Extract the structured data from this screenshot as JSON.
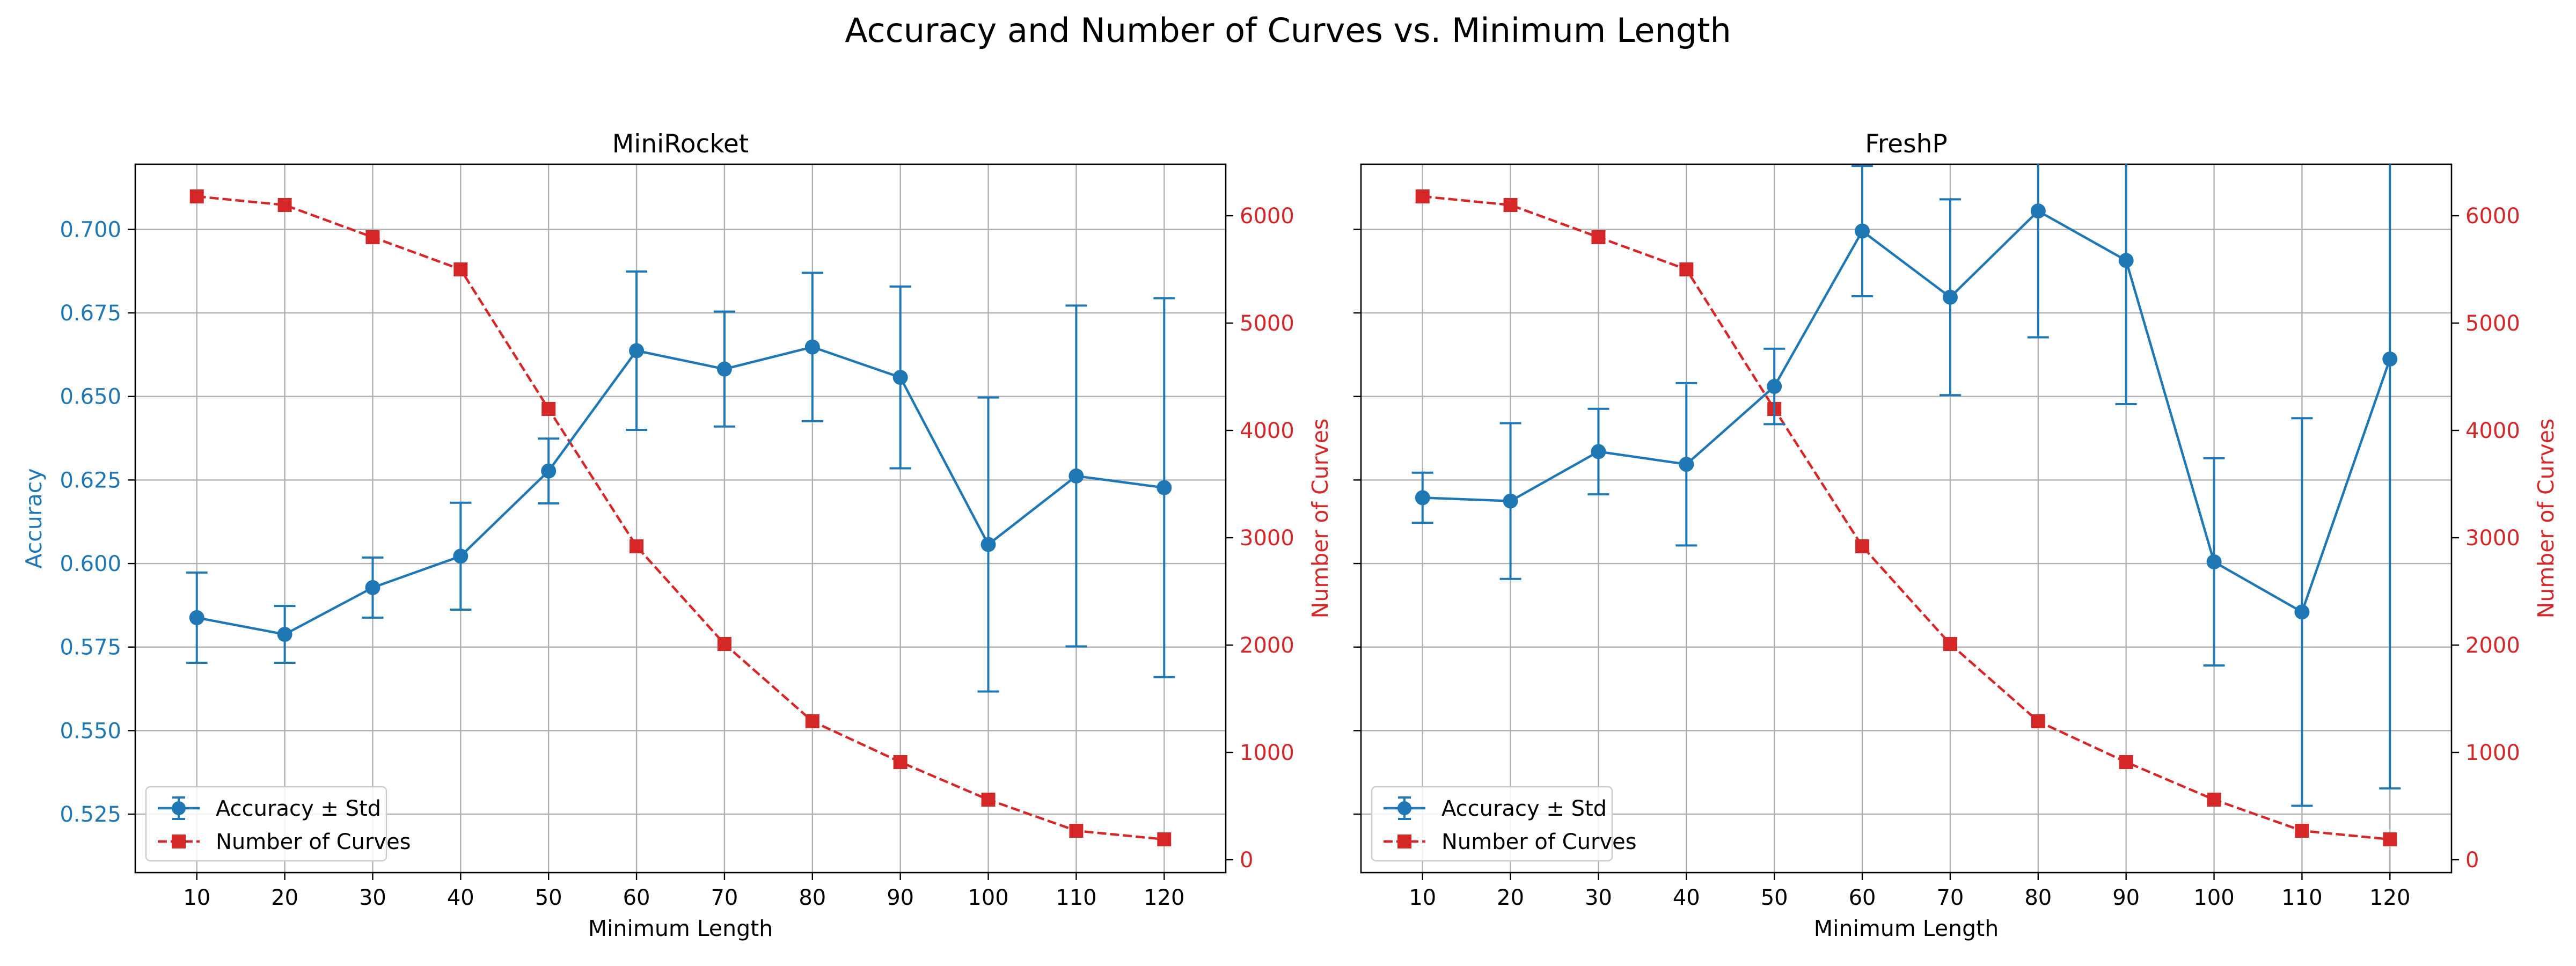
{
  "figure": {
    "suptitle": "Accuracy and Number of Curves vs. Minimum Length"
  },
  "colors": {
    "accuracy": "#1f77b4",
    "curves": "#d62728",
    "grid": "#b0b0b0",
    "axis": "#000000"
  },
  "chart_data": [
    {
      "type": "line",
      "title": "MiniRocket",
      "xlabel": "Minimum Length",
      "ylabel_left": "Accuracy",
      "ylabel_right": "Number of Curves",
      "x": [
        10,
        20,
        30,
        40,
        50,
        60,
        70,
        80,
        90,
        100,
        110,
        120
      ],
      "xticks": [
        "10",
        "20",
        "30",
        "40",
        "50",
        "60",
        "70",
        "80",
        "90",
        "100",
        "110",
        "120"
      ],
      "ylim_left": [
        0.5075,
        0.7195
      ],
      "yticks_left": [
        "0.525",
        "0.550",
        "0.575",
        "0.600",
        "0.625",
        "0.650",
        "0.675",
        "0.700"
      ],
      "ylim_right": [
        -120,
        6480
      ],
      "yticks_right": [
        "0",
        "1000",
        "2000",
        "3000",
        "4000",
        "5000",
        "6000"
      ],
      "grid": true,
      "legend_position": "lower-left",
      "series": [
        {
          "name": "Accuracy ± Std",
          "axis": "left",
          "style": "solid line, circle markers, error bars",
          "values": [
            0.5838,
            0.5788,
            0.5928,
            0.6022,
            0.6277,
            0.6637,
            0.6582,
            0.6648,
            0.6557,
            0.6057,
            0.6262,
            0.6227
          ],
          "std": [
            0.0135,
            0.0085,
            0.009,
            0.016,
            0.0097,
            0.0237,
            0.0172,
            0.0222,
            0.0272,
            0.044,
            0.051,
            0.0567
          ]
        },
        {
          "name": "Number of Curves",
          "axis": "right",
          "style": "dashed line, square markers",
          "values": [
            6180,
            6100,
            5800,
            5500,
            4200,
            2920,
            2010,
            1290,
            910,
            560,
            270,
            190
          ]
        }
      ]
    },
    {
      "type": "line",
      "title": "FreshP",
      "xlabel": "Minimum Length",
      "ylabel_left": "",
      "ylabel_right": "Number of Curves",
      "x": [
        10,
        20,
        30,
        40,
        50,
        60,
        70,
        80,
        90,
        100,
        110,
        120
      ],
      "xticks": [
        "10",
        "20",
        "30",
        "40",
        "50",
        "60",
        "70",
        "80",
        "90",
        "100",
        "110",
        "120"
      ],
      "ylim_left": [
        0.5075,
        0.7195
      ],
      "yticks_left": [],
      "ylim_right": [
        -120,
        6480
      ],
      "yticks_right": [
        "0",
        "1000",
        "2000",
        "3000",
        "4000",
        "5000",
        "6000"
      ],
      "grid": true,
      "legend_position": "lower-left",
      "series": [
        {
          "name": "Accuracy ± Std",
          "axis": "left",
          "style": "solid line, circle markers, error bars",
          "values": [
            0.6197,
            0.6187,
            0.6335,
            0.6297,
            0.653,
            0.6995,
            0.6797,
            0.7055,
            0.6907,
            0.6005,
            0.5855,
            0.6612
          ],
          "std": [
            0.0075,
            0.0233,
            0.0128,
            0.0243,
            0.0113,
            0.0195,
            0.0293,
            0.0378,
            0.043,
            0.031,
            0.058,
            0.1285
          ]
        },
        {
          "name": "Number of Curves",
          "axis": "right",
          "style": "dashed line, square markers",
          "values": [
            6180,
            6100,
            5800,
            5500,
            4200,
            2920,
            2010,
            1290,
            910,
            560,
            270,
            190
          ]
        }
      ]
    }
  ]
}
